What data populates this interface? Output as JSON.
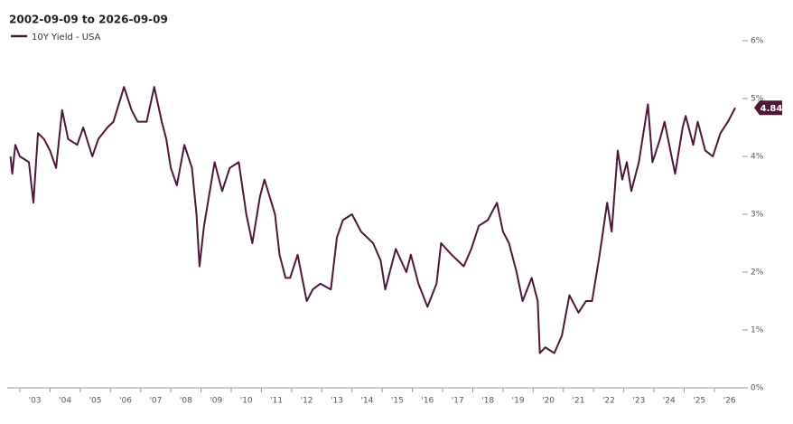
{
  "chart_data": {
    "type": "line",
    "title": "2002-09-09 to 2026-09-09",
    "series": [
      {
        "name": "10Y Yield - USA",
        "color": "#4b1838",
        "x": [
          2002.69,
          2002.75,
          2002.85,
          2003.0,
          2003.3,
          2003.45,
          2003.6,
          2003.8,
          2004.0,
          2004.2,
          2004.4,
          2004.6,
          2004.9,
          2005.1,
          2005.4,
          2005.6,
          2005.9,
          2006.1,
          2006.45,
          2006.7,
          2006.9,
          2007.2,
          2007.45,
          2007.7,
          2007.85,
          2008.0,
          2008.2,
          2008.45,
          2008.7,
          2008.85,
          2008.95,
          2009.1,
          2009.45,
          2009.7,
          2009.95,
          2010.25,
          2010.5,
          2010.7,
          2010.95,
          2011.1,
          2011.45,
          2011.6,
          2011.8,
          2011.95,
          2012.2,
          2012.5,
          2012.7,
          2012.95,
          2013.3,
          2013.5,
          2013.7,
          2014.0,
          2014.3,
          2014.7,
          2014.95,
          2015.1,
          2015.45,
          2015.8,
          2015.95,
          2016.2,
          2016.5,
          2016.8,
          2016.95,
          2017.3,
          2017.7,
          2017.95,
          2018.2,
          2018.5,
          2018.8,
          2019.0,
          2019.2,
          2019.45,
          2019.65,
          2019.95,
          2020.15,
          2020.22,
          2020.4,
          2020.7,
          2020.95,
          2021.2,
          2021.5,
          2021.75,
          2021.95,
          2022.2,
          2022.45,
          2022.6,
          2022.8,
          2022.95,
          2023.1,
          2023.25,
          2023.5,
          2023.8,
          2023.95,
          2024.2,
          2024.35,
          2024.7,
          2024.95,
          2025.05,
          2025.3,
          2025.45,
          2025.7,
          2025.95,
          2026.2,
          2026.45,
          2026.69
        ],
        "values": [
          4.0,
          3.7,
          4.2,
          4.0,
          3.9,
          3.2,
          4.4,
          4.3,
          4.1,
          3.8,
          4.8,
          4.3,
          4.2,
          4.5,
          4.0,
          4.3,
          4.5,
          4.6,
          5.2,
          4.8,
          4.6,
          4.6,
          5.2,
          4.6,
          4.3,
          3.8,
          3.5,
          4.2,
          3.8,
          3.0,
          2.1,
          2.8,
          3.9,
          3.4,
          3.8,
          3.9,
          3.0,
          2.5,
          3.3,
          3.6,
          3.0,
          2.3,
          1.9,
          1.9,
          2.3,
          1.5,
          1.7,
          1.8,
          1.7,
          2.6,
          2.9,
          3.0,
          2.7,
          2.5,
          2.2,
          1.7,
          2.4,
          2.0,
          2.3,
          1.8,
          1.4,
          1.8,
          2.5,
          2.3,
          2.1,
          2.4,
          2.8,
          2.9,
          3.2,
          2.7,
          2.5,
          2.0,
          1.5,
          1.9,
          1.5,
          0.6,
          0.7,
          0.6,
          0.9,
          1.6,
          1.3,
          1.5,
          1.5,
          2.3,
          3.2,
          2.7,
          4.1,
          3.6,
          3.9,
          3.4,
          3.9,
          4.9,
          3.9,
          4.3,
          4.6,
          3.7,
          4.5,
          4.7,
          4.2,
          4.6,
          4.1,
          4.0,
          4.4,
          4.6,
          4.84
        ]
      }
    ],
    "xlim": [
      2002.69,
      2026.69
    ],
    "xticks": [
      {
        "value": 2003,
        "label": "'03"
      },
      {
        "value": 2004,
        "label": "'04"
      },
      {
        "value": 2005,
        "label": "'05"
      },
      {
        "value": 2006,
        "label": "'06"
      },
      {
        "value": 2007,
        "label": "'07"
      },
      {
        "value": 2008,
        "label": "'08"
      },
      {
        "value": 2009,
        "label": "'09"
      },
      {
        "value": 2010,
        "label": "'10"
      },
      {
        "value": 2011,
        "label": "'11"
      },
      {
        "value": 2012,
        "label": "'12"
      },
      {
        "value": 2013,
        "label": "'13"
      },
      {
        "value": 2014,
        "label": "'14"
      },
      {
        "value": 2015,
        "label": "'15"
      },
      {
        "value": 2016,
        "label": "'16"
      },
      {
        "value": 2017,
        "label": "'17"
      },
      {
        "value": 2018,
        "label": "'18"
      },
      {
        "value": 2019,
        "label": "'19"
      },
      {
        "value": 2020,
        "label": "'20"
      },
      {
        "value": 2021,
        "label": "'21"
      },
      {
        "value": 2022,
        "label": "'22"
      },
      {
        "value": 2023,
        "label": "'23"
      },
      {
        "value": 2024,
        "label": "'24"
      },
      {
        "value": 2025,
        "label": "'25"
      },
      {
        "value": 2026,
        "label": "'26"
      }
    ],
    "ylim": [
      0,
      6
    ],
    "yticks": [
      {
        "value": 0,
        "label": "0%"
      },
      {
        "value": 1,
        "label": "1%"
      },
      {
        "value": 2,
        "label": "2%"
      },
      {
        "value": 3,
        "label": "3%"
      },
      {
        "value": 4,
        "label": "4%"
      },
      {
        "value": 5,
        "label": "5%"
      },
      {
        "value": 6,
        "label": "6%"
      }
    ]
  }
}
